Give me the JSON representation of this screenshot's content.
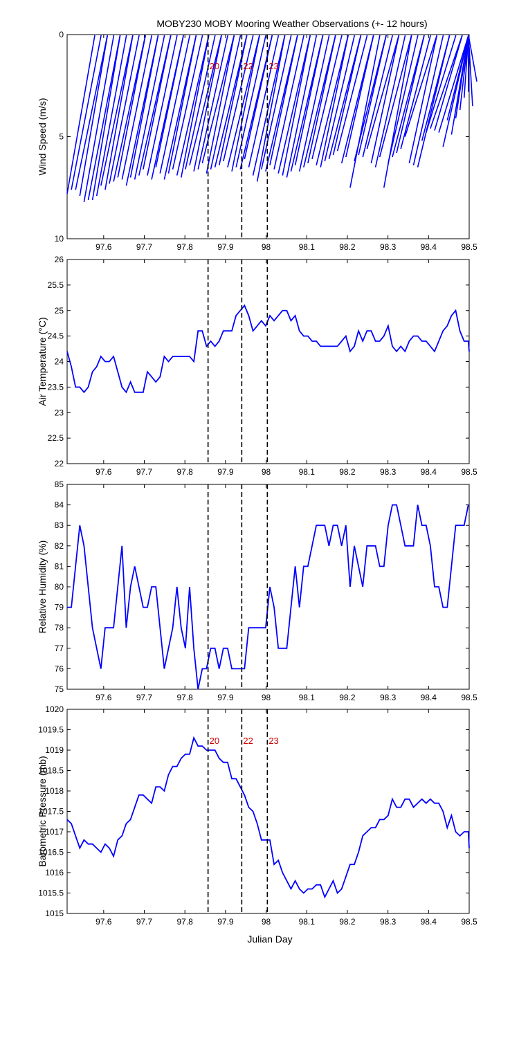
{
  "figure": {
    "title": "MOBY230 MOBY Mooring Weather Observations (+- 12 hours)",
    "xlabel": "Julian Day",
    "colors": {
      "series": "#0000ff",
      "marker_text": "#cc0000",
      "axes": "#000000"
    },
    "x_range": [
      97.51,
      98.5
    ],
    "x_ticks": [
      "97.6",
      "97.7",
      "97.8",
      "97.9",
      "98",
      "98.1",
      "98.2",
      "98.3",
      "98.4",
      "98.5"
    ],
    "markers": [
      {
        "x": 97.857,
        "label": "20"
      },
      {
        "x": 97.94,
        "label": "22"
      },
      {
        "x": 98.003,
        "label": "23"
      }
    ]
  },
  "chart_data": [
    {
      "type": "quiver",
      "name": "wind",
      "ylabel": "Wind Speed (m/s)",
      "ylim": [
        10,
        0
      ],
      "y_ticks": [
        "0",
        "5",
        "10"
      ],
      "markers_show_labels": true,
      "x_start": 97.51,
      "x_step": 0.0104,
      "speeds": [
        7.8,
        7.6,
        7.6,
        7.9,
        8.2,
        8.1,
        8.1,
        7.9,
        7.4,
        7.6,
        7.3,
        7.2,
        7.0,
        7.1,
        7.4,
        7.0,
        7.1,
        6.9,
        6.6,
        6.9,
        7.1,
        6.5,
        6.8,
        7.1,
        6.8,
        6.6,
        6.9,
        7.0,
        6.6,
        6.4,
        6.7,
        6.6,
        6.3,
        6.8,
        6.6,
        6.5,
        6.4,
        6.2,
        6.5,
        6.7,
        6.5,
        6.6,
        6.1,
        6.5,
        6.9,
        7.2,
        6.6,
        6.7,
        6.4,
        6.6,
        6.8,
        6.9,
        7.0,
        6.7,
        6.4,
        6.7,
        6.5,
        6.3,
        6.1,
        6.4,
        6.5,
        6.2,
        6.1,
        5.9,
        5.7,
        6.3,
        6.0,
        7.5,
        6.2,
        5.9,
        6.0,
        5.6,
        6.3,
        6.5,
        6.0,
        7.5,
        6.3,
        6.0,
        5.8,
        5.6,
        5.0,
        6.3,
        6.4,
        6.5,
        5.2,
        4.8,
        4.6,
        4.7,
        4.8,
        5.5,
        4.2,
        4.9,
        4.1,
        3.7,
        3.1,
        2.8,
        3.5,
        2.3
      ]
    },
    {
      "type": "line",
      "name": "air_temperature",
      "ylabel": "Air Temperature (°C)",
      "ylim": [
        22,
        26
      ],
      "y_ticks": [
        "22",
        "22.5",
        "23",
        "23.5",
        "24",
        "24.5",
        "25",
        "25.5",
        "26"
      ],
      "markers_show_labels": false,
      "x_start": 97.51,
      "x_step": 0.0104,
      "values": [
        24.2,
        23.9,
        23.5,
        23.5,
        23.4,
        23.5,
        23.8,
        23.9,
        24.1,
        24.0,
        24.0,
        24.1,
        23.8,
        23.5,
        23.4,
        23.6,
        23.4,
        23.4,
        23.4,
        23.8,
        23.7,
        23.6,
        23.7,
        24.1,
        24.0,
        24.1,
        24.1,
        24.1,
        24.1,
        24.1,
        24.0,
        24.6,
        24.6,
        24.3,
        24.4,
        24.3,
        24.4,
        24.6,
        24.6,
        24.6,
        24.9,
        25.0,
        25.1,
        24.9,
        24.6,
        24.7,
        24.8,
        24.7,
        24.9,
        24.8,
        24.9,
        25.0,
        25.0,
        24.8,
        24.9,
        24.6,
        24.5,
        24.5,
        24.4,
        24.4,
        24.3,
        24.3,
        24.3,
        24.3,
        24.3,
        24.4,
        24.5,
        24.2,
        24.3,
        24.6,
        24.4,
        24.6,
        24.6,
        24.4,
        24.4,
        24.5,
        24.7,
        24.3,
        24.2,
        24.3,
        24.2,
        24.4,
        24.5,
        24.5,
        24.4,
        24.4,
        24.3,
        24.2,
        24.4,
        24.6,
        24.7,
        24.9,
        25.0,
        24.6,
        24.4,
        24.4,
        24.2
      ]
    },
    {
      "type": "line",
      "name": "relative_humidity",
      "ylabel": "Relative Humidity (%)",
      "ylim": [
        75,
        85
      ],
      "y_ticks": [
        "75",
        "76",
        "77",
        "78",
        "79",
        "80",
        "81",
        "82",
        "83",
        "84",
        "85"
      ],
      "markers_show_labels": false,
      "x_start": 97.51,
      "x_step": 0.0104,
      "values": [
        79,
        79,
        81,
        83,
        82,
        80,
        78,
        77,
        76,
        78,
        78,
        78,
        80,
        82,
        78,
        80,
        81,
        80,
        79,
        79,
        80,
        80,
        78,
        76,
        77,
        78,
        80,
        78,
        77,
        80,
        77,
        75,
        76,
        76,
        77,
        77,
        76,
        77,
        77,
        76,
        76,
        76,
        76,
        78,
        78,
        78,
        78,
        78,
        80,
        79,
        77,
        77,
        77,
        79,
        81,
        79,
        81,
        81,
        82,
        83,
        83,
        83,
        82,
        83,
        83,
        82,
        83,
        80,
        82,
        81,
        80,
        82,
        82,
        82,
        81,
        81,
        83,
        84,
        84,
        83,
        82,
        82,
        82,
        84,
        83,
        83,
        82,
        80,
        80,
        79,
        79,
        81,
        83,
        83,
        83,
        84
      ]
    },
    {
      "type": "line",
      "name": "barometric_pressure",
      "ylabel": "Barometric Pressure (mb)",
      "ylim": [
        1015,
        1020
      ],
      "y_ticks": [
        "1015",
        "1015.5",
        "1016",
        "1016.5",
        "1017",
        "1017.5",
        "1018",
        "1018.5",
        "1019",
        "1019.5",
        "1020"
      ],
      "markers_show_labels": true,
      "x_start": 97.51,
      "x_step": 0.0104,
      "values": [
        1017.3,
        1017.2,
        1016.9,
        1016.6,
        1016.8,
        1016.7,
        1016.7,
        1016.6,
        1016.5,
        1016.7,
        1016.6,
        1016.4,
        1016.8,
        1016.9,
        1017.2,
        1017.3,
        1017.6,
        1017.9,
        1017.9,
        1017.8,
        1017.7,
        1018.1,
        1018.1,
        1018.0,
        1018.4,
        1018.6,
        1018.6,
        1018.8,
        1018.9,
        1018.9,
        1019.3,
        1019.1,
        1019.1,
        1019.0,
        1019.0,
        1019.0,
        1018.8,
        1018.7,
        1018.7,
        1018.3,
        1018.3,
        1018.1,
        1017.9,
        1017.6,
        1017.5,
        1017.2,
        1016.8,
        1016.8,
        1016.8,
        1016.2,
        1016.3,
        1016.0,
        1015.8,
        1015.6,
        1015.8,
        1015.6,
        1015.5,
        1015.6,
        1015.6,
        1015.7,
        1015.7,
        1015.4,
        1015.6,
        1015.8,
        1015.5,
        1015.6,
        1015.9,
        1016.2,
        1016.2,
        1016.5,
        1016.9,
        1017.0,
        1017.1,
        1017.1,
        1017.3,
        1017.3,
        1017.4,
        1017.8,
        1017.6,
        1017.6,
        1017.8,
        1017.8,
        1017.6,
        1017.7,
        1017.8,
        1017.7,
        1017.8,
        1017.7,
        1017.7,
        1017.5,
        1017.1,
        1017.4,
        1017.0,
        1016.9,
        1017.0,
        1017.0,
        1016.6
      ]
    }
  ]
}
